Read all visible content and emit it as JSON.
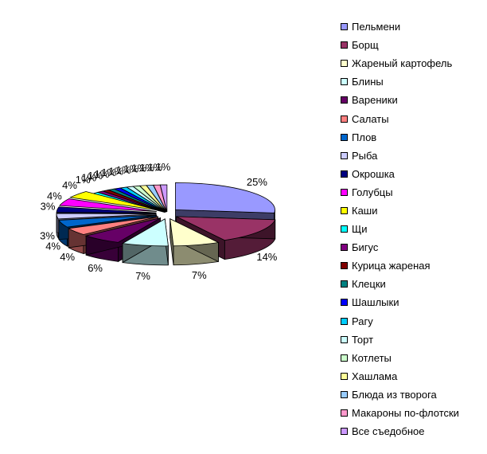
{
  "chart_data": {
    "type": "pie",
    "three_d": true,
    "exploded": true,
    "legend_position": "right",
    "categories": [
      "Пельмени",
      "Борщ",
      "Жареный картофель",
      "Блины",
      "Вареники",
      "Салаты",
      "Плов",
      "Рыба",
      "Окрошка",
      "Голубцы",
      "Каши",
      "Щи",
      "Бигус",
      "Курица жареная",
      "Клецки",
      "Шашлыки",
      "Рагу",
      "Торт",
      "Котлеты",
      "Хашлама",
      "Блюда из творога",
      "Макароны по-флотски",
      "Все съедобное"
    ],
    "values": [
      25,
      14,
      7,
      7,
      6,
      4,
      4,
      3,
      3,
      4,
      4,
      1,
      1,
      1,
      1,
      1,
      1,
      1,
      1,
      1,
      1,
      1,
      1
    ],
    "labels": [
      "25%",
      "14%",
      "7%",
      "7%",
      "6%",
      "4%",
      "4%",
      "3%",
      "3%",
      "4%",
      "4%",
      "1%",
      "1%",
      "1%",
      "1%",
      "1%",
      "1%",
      "1%",
      "1%",
      "1%",
      "1%",
      "1%",
      "1%"
    ],
    "colors": [
      "#9999FF",
      "#993366",
      "#FFFFCC",
      "#CCFFFF",
      "#660066",
      "#FF8080",
      "#0066CC",
      "#CCCCFF",
      "#000080",
      "#FF00FF",
      "#FFFF00",
      "#00FFFF",
      "#800080",
      "#800000",
      "#008080",
      "#0000FF",
      "#00CCFF",
      "#CCFFFF",
      "#CCFFCC",
      "#FFFF99",
      "#99CCFF",
      "#FF99CC",
      "#CC99FF"
    ]
  }
}
